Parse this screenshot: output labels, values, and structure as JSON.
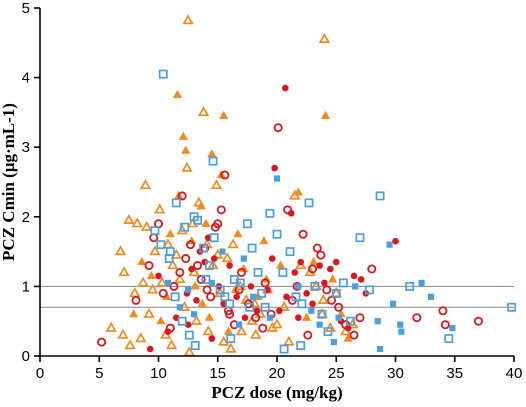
{
  "chart_data": {
    "type": "scatter",
    "xlabel": "PCZ dose (mg/kg)",
    "ylabel": "PCZ Cmin (μg·mL-1)",
    "xlim": [
      0,
      40
    ],
    "ylim": [
      0,
      5
    ],
    "x_ticks": [
      0,
      5,
      10,
      15,
      20,
      25,
      30,
      35,
      40
    ],
    "y_ticks": [
      0,
      1,
      2,
      3,
      4,
      5
    ],
    "grid": false,
    "reference_lines_y": [
      1.0,
      0.7
    ],
    "colors": {
      "orange": "#f28a1c",
      "red": "#e0141d",
      "blue": "#4a9fe2",
      "reference": "#888888"
    },
    "series": [
      {
        "marker": "open-triangle",
        "color": "#f28a1c",
        "points": [
          [
            12.5,
            4.82
          ],
          [
            24.0,
            4.55
          ],
          [
            11.2,
            1.3
          ],
          [
            13.8,
            3.5
          ],
          [
            8.9,
            2.45
          ],
          [
            10.1,
            2.1
          ],
          [
            7.5,
            1.95
          ],
          [
            8.2,
            1.9
          ],
          [
            9.0,
            1.85
          ],
          [
            9.7,
            1.5
          ],
          [
            11.5,
            1.45
          ],
          [
            12.0,
            1.8
          ],
          [
            6.8,
            1.5
          ],
          [
            7.1,
            1.2
          ],
          [
            8.0,
            0.9
          ],
          [
            9.5,
            0.95
          ],
          [
            10.3,
            1.05
          ],
          [
            11.8,
            1.1
          ],
          [
            12.2,
            0.7
          ],
          [
            12.9,
            1.9
          ],
          [
            13.4,
            2.2
          ],
          [
            14.1,
            1.6
          ],
          [
            14.6,
            1.3
          ],
          [
            15.2,
            0.9
          ],
          [
            15.8,
            1.4
          ],
          [
            16.3,
            1.6
          ],
          [
            16.9,
            1.0
          ],
          [
            17.4,
            0.8
          ],
          [
            17.9,
            0.5
          ],
          [
            18.6,
            0.6
          ],
          [
            19.2,
            0.95
          ],
          [
            20.0,
            0.45
          ],
          [
            21.0,
            0.2
          ],
          [
            21.5,
            2.3
          ],
          [
            22.0,
            1.3
          ],
          [
            22.8,
            1.2
          ],
          [
            23.3,
            1.0
          ],
          [
            23.9,
            0.8
          ],
          [
            24.5,
            0.4
          ],
          [
            25.0,
            0.9
          ],
          [
            25.8,
            0.35
          ],
          [
            26.4,
            0.45
          ],
          [
            6.0,
            0.4
          ],
          [
            7.0,
            0.3
          ],
          [
            7.6,
            0.15
          ],
          [
            8.5,
            0.25
          ],
          [
            9.2,
            0.6
          ],
          [
            10.6,
            0.3
          ],
          [
            11.1,
            0.15
          ],
          [
            12.6,
            0.05
          ],
          [
            13.2,
            0.5
          ],
          [
            14.2,
            0.35
          ],
          [
            15.5,
            0.2
          ],
          [
            16.1,
            0.1
          ],
          [
            17.0,
            0.35
          ],
          [
            18.2,
            0.3
          ],
          [
            19.6,
            0.4
          ],
          [
            20.6,
            0.7
          ],
          [
            8.7,
            1.05
          ],
          [
            10.8,
            1.6
          ],
          [
            13.0,
            1.2
          ],
          [
            15.0,
            1.45
          ],
          [
            23.8,
            0.6
          ],
          [
            12.4,
            2.7
          ],
          [
            14.9,
            2.45
          ],
          [
            18.1,
            0.75
          ]
        ]
      },
      {
        "marker": "filled-triangle",
        "color": "#f28a1c",
        "points": [
          [
            11.0,
            1.75
          ],
          [
            12.1,
            3.15
          ],
          [
            12.3,
            2.95
          ],
          [
            14.5,
            2.9
          ],
          [
            15.5,
            3.45
          ],
          [
            24.1,
            3.45
          ],
          [
            13.6,
            2.15
          ],
          [
            15.3,
            2.6
          ],
          [
            16.7,
            1.75
          ],
          [
            8.6,
            1.35
          ],
          [
            9.4,
            1.15
          ],
          [
            10.7,
            0.85
          ],
          [
            11.7,
            2.3
          ],
          [
            13.1,
            1.0
          ],
          [
            13.7,
            0.75
          ],
          [
            14.3,
            0.55
          ],
          [
            15.9,
            0.35
          ],
          [
            17.2,
            1.25
          ],
          [
            18.4,
            0.85
          ],
          [
            19.1,
            1.1
          ],
          [
            21.8,
            2.35
          ],
          [
            22.5,
            0.55
          ],
          [
            23.1,
            1.35
          ],
          [
            24.7,
            1.1
          ],
          [
            25.4,
            0.6
          ],
          [
            26.0,
            0.25
          ],
          [
            12.8,
            1.65
          ],
          [
            14.0,
            1.9
          ],
          [
            7.9,
            0.6
          ],
          [
            10.2,
            0.5
          ],
          [
            11.6,
            3.75
          ],
          [
            16.5,
            0.95
          ],
          [
            20.3,
            1.3
          ],
          [
            18.9,
            1.65
          ]
        ]
      },
      {
        "marker": "open-circle",
        "color": "#e0141d",
        "points": [
          [
            5.2,
            0.2
          ],
          [
            8.1,
            0.8
          ],
          [
            9.2,
            1.3
          ],
          [
            9.6,
            1.7
          ],
          [
            10.0,
            1.9
          ],
          [
            10.4,
            0.9
          ],
          [
            11.3,
            1.0
          ],
          [
            11.8,
            1.2
          ],
          [
            12.3,
            1.4
          ],
          [
            12.7,
            1.6
          ],
          [
            13.3,
            1.3
          ],
          [
            13.6,
            1.1
          ],
          [
            14.1,
            0.95
          ],
          [
            14.4,
            0.85
          ],
          [
            14.8,
            1.85
          ],
          [
            15.0,
            1.9
          ],
          [
            15.3,
            2.1
          ],
          [
            15.6,
            2.6
          ],
          [
            16.0,
            0.6
          ],
          [
            16.4,
            0.45
          ],
          [
            17.0,
            1.2
          ],
          [
            17.6,
            0.75
          ],
          [
            18.2,
            0.55
          ],
          [
            18.8,
            0.4
          ],
          [
            19.5,
            0.6
          ],
          [
            20.1,
            3.28
          ],
          [
            20.9,
            2.1
          ],
          [
            21.3,
            0.8
          ],
          [
            21.7,
            1.0
          ],
          [
            22.2,
            1.75
          ],
          [
            22.6,
            0.3
          ],
          [
            23.0,
            1.25
          ],
          [
            23.4,
            1.55
          ],
          [
            23.7,
            1.45
          ],
          [
            24.2,
            0.95
          ],
          [
            24.6,
            0.8
          ],
          [
            25.2,
            0.7
          ],
          [
            25.8,
            0.45
          ],
          [
            26.5,
            0.3
          ],
          [
            27.0,
            0.55
          ],
          [
            28.0,
            1.25
          ],
          [
            31.8,
            0.55
          ],
          [
            34.2,
            0.45
          ],
          [
            34.0,
            0.65
          ],
          [
            37.0,
            0.5
          ],
          [
            12.0,
            2.3
          ],
          [
            13.9,
            1.55
          ],
          [
            15.9,
            0.65
          ],
          [
            11.0,
            0.4
          ],
          [
            16.8,
            0.95
          ],
          [
            19.0,
            1.05
          ]
        ]
      },
      {
        "marker": "filled-circle",
        "color": "#e0141d",
        "points": [
          [
            20.7,
            3.85
          ],
          [
            19.8,
            2.7
          ],
          [
            10.0,
            1.15
          ],
          [
            12.4,
            0.9
          ],
          [
            12.8,
            1.25
          ],
          [
            13.2,
            0.8
          ],
          [
            13.5,
            1.5
          ],
          [
            13.9,
            1.35
          ],
          [
            14.2,
            1.7
          ],
          [
            14.7,
            1.4
          ],
          [
            15.1,
            1.0
          ],
          [
            15.5,
            0.75
          ],
          [
            16.0,
            1.3
          ],
          [
            16.6,
            0.85
          ],
          [
            17.3,
            0.55
          ],
          [
            17.8,
            1.0
          ],
          [
            18.3,
            0.65
          ],
          [
            19.2,
            0.95
          ],
          [
            19.6,
            1.4
          ],
          [
            20.2,
            0.65
          ],
          [
            20.8,
            0.85
          ],
          [
            21.2,
            2.05
          ],
          [
            21.5,
            1.2
          ],
          [
            22.0,
            1.35
          ],
          [
            22.5,
            0.9
          ],
          [
            23.0,
            0.75
          ],
          [
            23.6,
            1.3
          ],
          [
            24.0,
            1.05
          ],
          [
            24.5,
            1.25
          ],
          [
            25.0,
            1.35
          ],
          [
            25.4,
            0.5
          ],
          [
            26.0,
            0.4
          ],
          [
            26.5,
            1.15
          ],
          [
            27.1,
            1.1
          ],
          [
            27.5,
            0.9
          ],
          [
            30.0,
            1.65
          ],
          [
            10.8,
            0.35
          ],
          [
            9.3,
            0.1
          ],
          [
            11.5,
            0.55
          ],
          [
            12.5,
            0.45
          ],
          [
            14.5,
            0.25
          ],
          [
            21.8,
            0.55
          ]
        ]
      },
      {
        "marker": "open-square",
        "color": "#4a9fe2",
        "points": [
          [
            10.4,
            4.05
          ],
          [
            14.6,
            2.8
          ],
          [
            11.5,
            2.2
          ],
          [
            12.2,
            1.85
          ],
          [
            13.0,
            2.0
          ],
          [
            13.3,
            1.95
          ],
          [
            13.8,
            1.55
          ],
          [
            14.0,
            1.1
          ],
          [
            14.3,
            1.3
          ],
          [
            14.7,
            1.7
          ],
          [
            15.2,
            0.95
          ],
          [
            15.6,
            0.85
          ],
          [
            16.0,
            0.75
          ],
          [
            16.4,
            1.1
          ],
          [
            16.9,
            1.05
          ],
          [
            17.5,
            1.9
          ],
          [
            17.9,
            1.55
          ],
          [
            18.4,
            1.2
          ],
          [
            18.7,
            0.9
          ],
          [
            19.0,
            0.7
          ],
          [
            19.4,
            2.05
          ],
          [
            20.0,
            1.75
          ],
          [
            20.5,
            1.2
          ],
          [
            21.1,
            1.5
          ],
          [
            21.6,
            0.85
          ],
          [
            22.1,
            0.75
          ],
          [
            22.7,
            2.2
          ],
          [
            23.2,
            1.0
          ],
          [
            23.8,
            0.6
          ],
          [
            24.3,
            0.35
          ],
          [
            25.0,
            0.9
          ],
          [
            25.6,
            1.05
          ],
          [
            26.2,
            0.5
          ],
          [
            27.0,
            1.7
          ],
          [
            27.8,
            0.95
          ],
          [
            28.7,
            2.3
          ],
          [
            31.2,
            1.0
          ],
          [
            34.5,
            0.25
          ],
          [
            39.8,
            0.7
          ],
          [
            9.7,
            1.8
          ],
          [
            10.9,
            1.4
          ],
          [
            11.4,
            0.85
          ],
          [
            12.0,
            0.5
          ],
          [
            12.6,
            0.3
          ],
          [
            13.1,
            0.15
          ],
          [
            10.2,
            1.6
          ],
          [
            11.0,
            1.5
          ],
          [
            16.1,
            0.25
          ],
          [
            20.6,
            0.1
          ],
          [
            22.0,
            0.15
          ],
          [
            17.7,
            0.7
          ]
        ]
      },
      {
        "marker": "filled-square",
        "color": "#4a9fe2",
        "points": [
          [
            20.0,
            2.55
          ],
          [
            29.5,
            1.6
          ],
          [
            26.6,
            1.0
          ],
          [
            28.5,
            0.5
          ],
          [
            30.5,
            0.35
          ],
          [
            32.2,
            1.05
          ],
          [
            33.0,
            0.85
          ],
          [
            34.8,
            0.4
          ],
          [
            29.8,
            0.75
          ],
          [
            25.2,
            0.55
          ],
          [
            24.8,
            0.2
          ],
          [
            28.7,
            0.1
          ],
          [
            12.5,
            0.95
          ],
          [
            14.5,
            1.05
          ],
          [
            13.0,
            0.6
          ],
          [
            16.8,
            0.45
          ],
          [
            18.0,
            0.85
          ],
          [
            19.4,
            0.55
          ],
          [
            15.4,
            1.5
          ],
          [
            17.2,
            1.4
          ],
          [
            21.8,
            1.0
          ],
          [
            22.9,
            0.65
          ],
          [
            23.6,
            0.45
          ],
          [
            30.4,
            0.45
          ],
          [
            11.8,
            0.7
          ],
          [
            10.8,
            1.05
          ]
        ]
      }
    ]
  }
}
